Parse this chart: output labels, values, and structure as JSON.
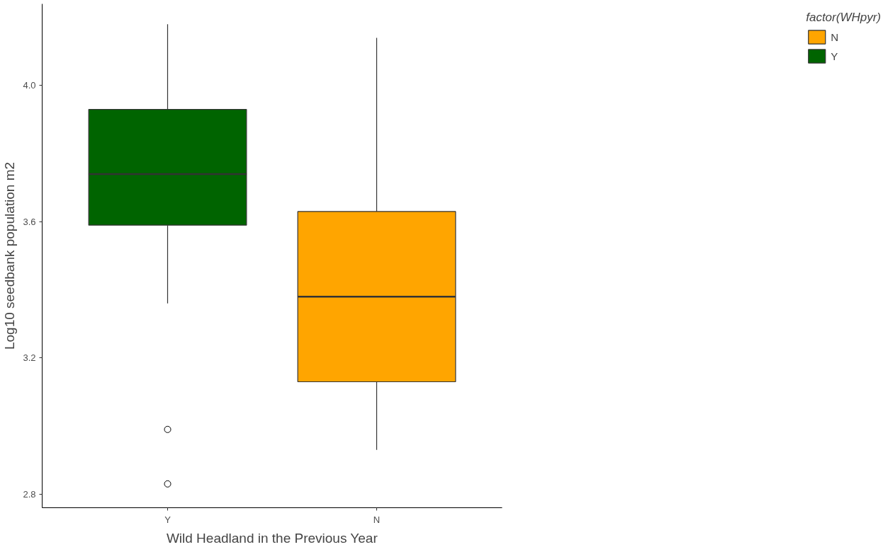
{
  "chart_data": {
    "type": "box",
    "xlabel": "Wild Headland in the Previous Year",
    "ylabel": "Log10 seedbank population m2",
    "legend_title": "factor(WHpyr)",
    "categories": [
      "Y",
      "N"
    ],
    "series": [
      {
        "name": "N",
        "color": "#ffa500",
        "boxes": [
          null,
          {
            "low": 2.93,
            "q1": 3.13,
            "median": 3.38,
            "q3": 3.63,
            "high": 4.14
          }
        ]
      },
      {
        "name": "Y",
        "color": "#006400",
        "boxes": [
          {
            "low": 3.36,
            "q1": 3.59,
            "median": 3.74,
            "q3": 3.93,
            "high": 4.18,
            "outliers": [
              2.99,
              2.83
            ]
          },
          null
        ]
      }
    ],
    "ylim": [
      2.76,
      4.24
    ],
    "yticks": [
      {
        "value": 2.8,
        "label": "2.8"
      },
      {
        "value": 3.2,
        "label": "3.2"
      },
      {
        "value": 3.6,
        "label": "3.6"
      },
      {
        "value": 4.0,
        "label": "4.0"
      }
    ],
    "grid": false,
    "legend": "right"
  }
}
